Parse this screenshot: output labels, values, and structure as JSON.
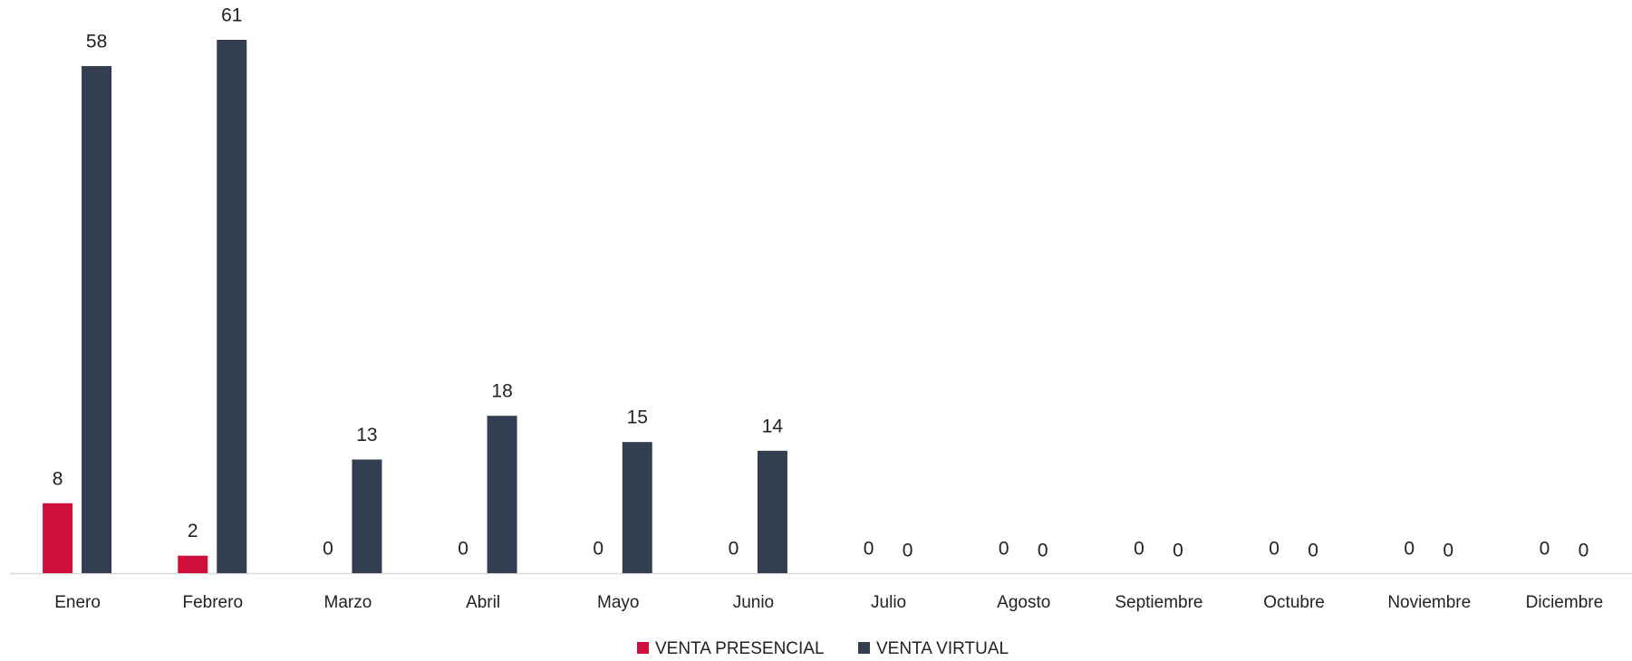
{
  "chart_data": {
    "type": "bar",
    "categories": [
      "Enero",
      "Febrero",
      "Marzo",
      "Abril",
      "Mayo",
      "Junio",
      "Julio",
      "Agosto",
      "Septiembre",
      "Octubre",
      "Noviembre",
      "Diciembre"
    ],
    "series": [
      {
        "name": "VENTA PRESENCIAL",
        "color": "#d0103a",
        "values": [
          8,
          2,
          0,
          0,
          0,
          0,
          0,
          0,
          0,
          0,
          0,
          0
        ]
      },
      {
        "name": "VENTA VIRTUAL",
        "color": "#333f50",
        "values": [
          58,
          61,
          13,
          18,
          15,
          14,
          0,
          0,
          0,
          0,
          0,
          0
        ]
      }
    ],
    "legend": "bottom"
  }
}
